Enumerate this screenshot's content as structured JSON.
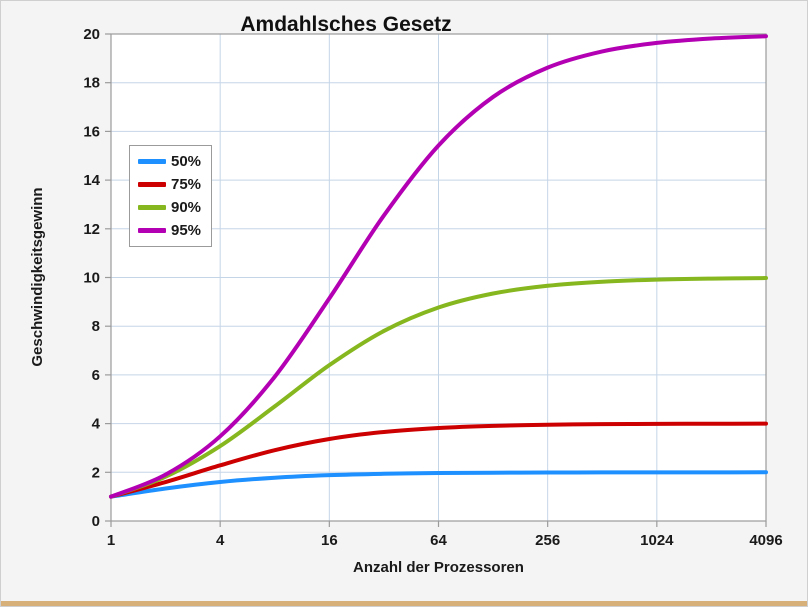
{
  "figure": {
    "background": "#f4f4f4",
    "plot_background": "#ffffff",
    "grid_color": "#c5d5e8",
    "axis_color": "#9b9b9b",
    "text_color": "#1a1a1a",
    "bottom_strip_color": "#d7b079"
  },
  "chart_data": {
    "type": "line",
    "title": "Amdahlsches Gesetz",
    "xlabel": "Anzahl der Prozessoren",
    "ylabel": "Geschwindigkeitsgewinn",
    "xscale": "log2",
    "xlim": [
      1,
      4096
    ],
    "ylim": [
      0,
      20
    ],
    "xticks": [
      1,
      4,
      16,
      64,
      256,
      1024,
      4096
    ],
    "yticks": [
      0,
      2,
      4,
      6,
      8,
      10,
      12,
      14,
      16,
      18,
      20
    ],
    "grid": true,
    "legend_position": "upper-left",
    "x": [
      1,
      2,
      4,
      8,
      16,
      32,
      64,
      128,
      256,
      512,
      1024,
      2048,
      4096
    ],
    "series": [
      {
        "name": "50%",
        "color": "#1e90ff",
        "values": [
          1.0,
          1.333,
          1.6,
          1.778,
          1.882,
          1.939,
          1.969,
          1.984,
          1.992,
          1.996,
          1.998,
          1.999,
          2.0
        ]
      },
      {
        "name": "75%",
        "color": "#cc0000",
        "values": [
          1.0,
          1.6,
          2.286,
          2.909,
          3.368,
          3.657,
          3.821,
          3.908,
          3.954,
          3.977,
          3.988,
          3.994,
          3.997
        ]
      },
      {
        "name": "90%",
        "color": "#86b71f",
        "values": [
          1.0,
          1.818,
          3.077,
          4.706,
          6.4,
          7.805,
          8.767,
          9.343,
          9.66,
          9.827,
          9.913,
          9.956,
          9.978
        ]
      },
      {
        "name": "95%",
        "color": "#b300b3",
        "values": [
          1.0,
          1.905,
          3.478,
          5.926,
          9.143,
          12.549,
          15.422,
          17.415,
          18.618,
          19.284,
          19.635,
          19.816,
          19.908
        ]
      }
    ]
  }
}
